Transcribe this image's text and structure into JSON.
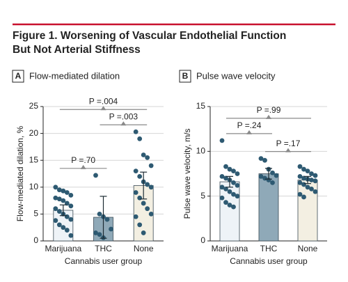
{
  "figure": {
    "title_lines": [
      "Figure 1. Worsening of Vascular Endothelial Function",
      "But Not Arterial Stiffness"
    ]
  },
  "chart_data": [
    {
      "type": "bar",
      "panel": "A",
      "title": "Flow-mediated dilation",
      "xlabel": "Cannabis user group",
      "ylabel": "Flow-mediated dilation, %",
      "categories": [
        "Marijuana",
        "THC",
        "None"
      ],
      "values": [
        5.7,
        4.4,
        10.3
      ],
      "errors": [
        1.0,
        3.9,
        2.5
      ],
      "colors": [
        "#eef3f7",
        "#8fa9b8",
        "#f3efe2"
      ],
      "point_color": "#2e5a72",
      "points": [
        [
          10.0,
          9.5,
          9.3,
          9.0,
          8.5,
          8.0,
          7.8,
          7.5,
          7.0,
          6.5,
          6.0,
          5.5,
          5.0,
          4.5,
          4.0,
          3.8,
          3.0,
          2.5,
          2.0,
          1.0
        ],
        [
          12.2,
          5.0,
          4.5,
          4.0,
          2.2,
          1.5,
          1.2,
          0.6
        ],
        [
          20.3,
          19.0,
          16.0,
          15.5,
          14.0,
          13.0,
          12.0,
          11.0,
          10.5,
          10.0,
          9.0,
          8.0,
          7.0,
          6.0,
          5.0,
          4.5,
          3.0,
          1.5
        ]
      ],
      "annotations": [
        {
          "label": "P =.70",
          "from": 0,
          "to": 1
        },
        {
          "label": "P =.003",
          "from": 1,
          "to": 2
        },
        {
          "label": "P =.004",
          "from": 0,
          "to": 2
        }
      ],
      "ylim": [
        0,
        25
      ],
      "yticks": [
        0,
        5,
        10,
        15,
        20,
        25
      ],
      "grid": true
    },
    {
      "type": "bar",
      "panel": "B",
      "title": "Pulse wave velocity",
      "xlabel": "Cannabis user group",
      "ylabel": "Pulse wave velocity, m/s",
      "categories": [
        "Marijuana",
        "THC",
        "None"
      ],
      "values": [
        6.6,
        7.5,
        6.8
      ],
      "errors": [
        0.6,
        0.6,
        0.4
      ],
      "colors": [
        "#eef3f7",
        "#8fa9b8",
        "#f3efe2"
      ],
      "point_color": "#2e5a72",
      "points": [
        [
          11.2,
          8.3,
          8.0,
          7.8,
          7.5,
          7.2,
          7.0,
          6.8,
          6.5,
          6.2,
          6.0,
          5.8,
          5.5,
          5.2,
          5.0,
          4.8,
          4.3,
          4.0,
          3.8
        ],
        [
          9.2,
          9.0,
          8.0,
          7.6,
          7.3,
          7.2,
          7.0,
          6.8,
          6.5
        ],
        [
          8.3,
          8.0,
          7.8,
          7.5,
          7.3,
          7.2,
          7.0,
          6.9,
          6.8,
          6.7,
          6.5,
          6.3,
          6.0,
          5.8,
          5.5,
          5.2,
          4.9
        ]
      ],
      "annotations": [
        {
          "label": "P =.24",
          "from": 0,
          "to": 1
        },
        {
          "label": "P =.17",
          "from": 1,
          "to": 2
        },
        {
          "label": "P =.99",
          "from": 0,
          "to": 2
        }
      ],
      "ylim": [
        0,
        15
      ],
      "yticks": [
        0,
        5,
        10,
        15
      ],
      "grid": true
    }
  ]
}
